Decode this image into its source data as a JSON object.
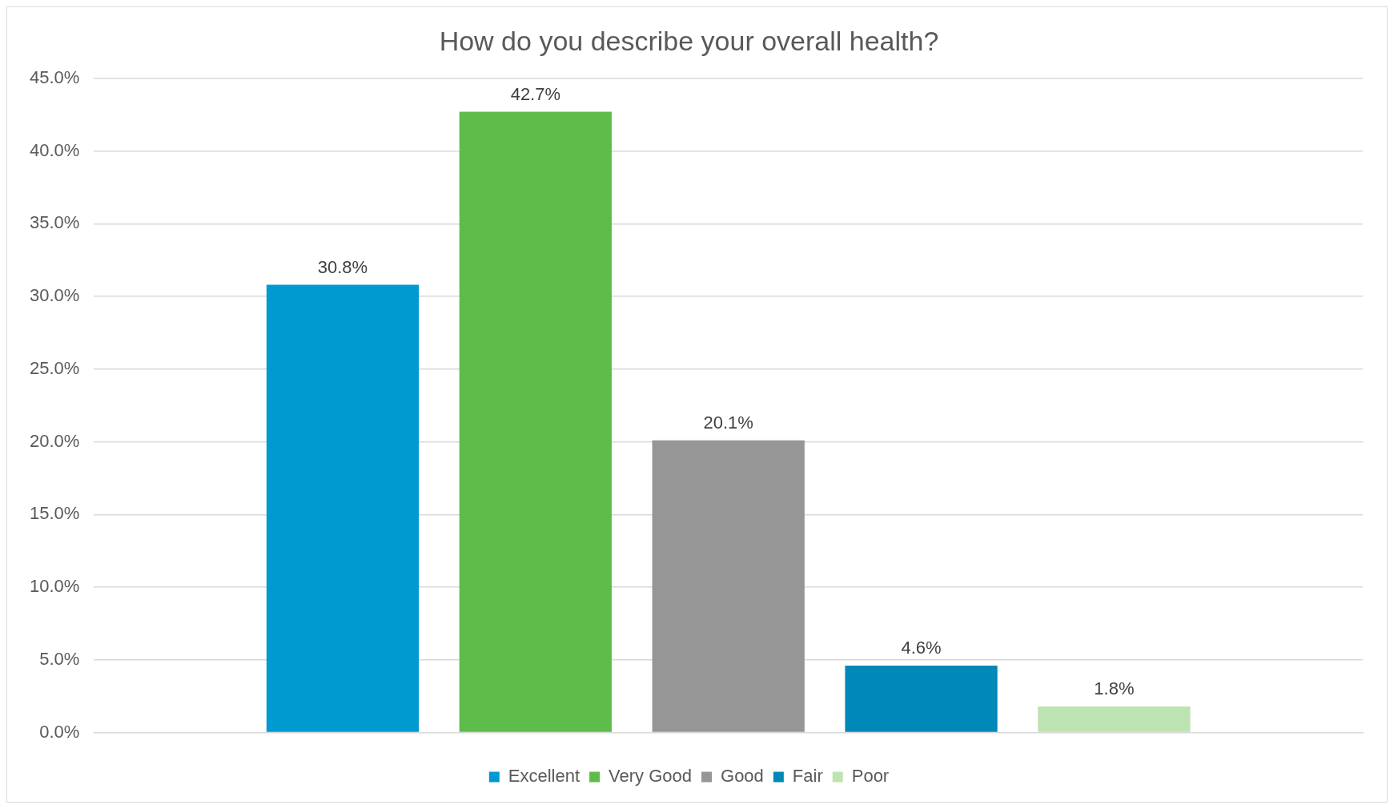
{
  "chart_data": {
    "type": "bar",
    "title": "How do you describe your overall health?",
    "categories": [
      null
    ],
    "series": [
      {
        "name": "Excellent",
        "color": "#0099d0",
        "values": [
          30.8
        ],
        "value_labels": [
          "30.8%"
        ]
      },
      {
        "name": "Very Good",
        "color": "#5dbc4a",
        "values": [
          42.7
        ],
        "value_labels": [
          "42.7%"
        ]
      },
      {
        "name": "Good",
        "color": "#969696",
        "values": [
          20.1
        ],
        "value_labels": [
          "20.1%"
        ]
      },
      {
        "name": "Fair",
        "color": "#0088b8",
        "values": [
          4.6
        ],
        "value_labels": [
          "4.6%"
        ]
      },
      {
        "name": "Poor",
        "color": "#bde3b1",
        "values": [
          1.8
        ],
        "value_labels": [
          "1.8%"
        ]
      }
    ],
    "ylim": [
      0,
      45
    ],
    "yticks": [
      {
        "value": 0,
        "label": "0.0%"
      },
      {
        "value": 5,
        "label": "5.0%"
      },
      {
        "value": 10,
        "label": "10.0%"
      },
      {
        "value": 15,
        "label": "15.0%"
      },
      {
        "value": 20,
        "label": "20.0%"
      },
      {
        "value": 25,
        "label": "25.0%"
      },
      {
        "value": 30,
        "label": "30.0%"
      },
      {
        "value": 35,
        "label": "35.0%"
      },
      {
        "value": 40,
        "label": "40.0%"
      },
      {
        "value": 45,
        "label": "45.0%"
      }
    ],
    "grid": "y",
    "legend": "bottom"
  }
}
